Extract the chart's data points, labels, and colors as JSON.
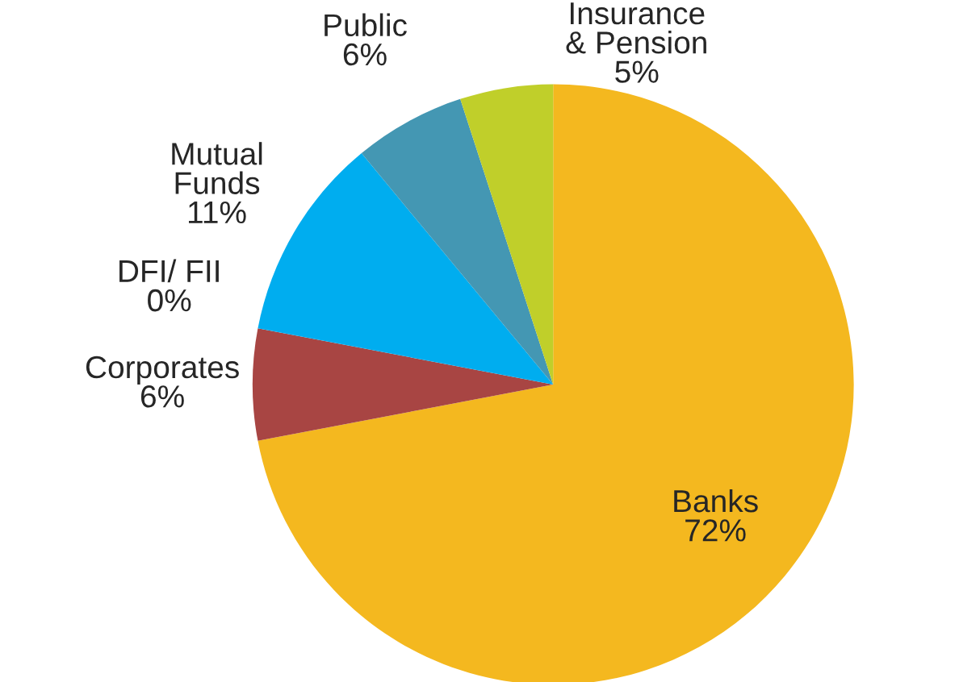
{
  "chart_data": {
    "type": "pie",
    "categories": [
      "Banks",
      "Corporates",
      "DFI/ FII",
      "Mutual\nFunds",
      "Public",
      "Insurance\n& Pension"
    ],
    "values": [
      72,
      6,
      0,
      11,
      6,
      5
    ],
    "value_labels": [
      "72%",
      "6%",
      "0%",
      "11%",
      "6%",
      "5%"
    ],
    "colors": [
      "#f4b81f",
      "#a84543",
      "#7ab33a",
      "#00adef",
      "#4497b3",
      "#c0cf2a"
    ]
  }
}
